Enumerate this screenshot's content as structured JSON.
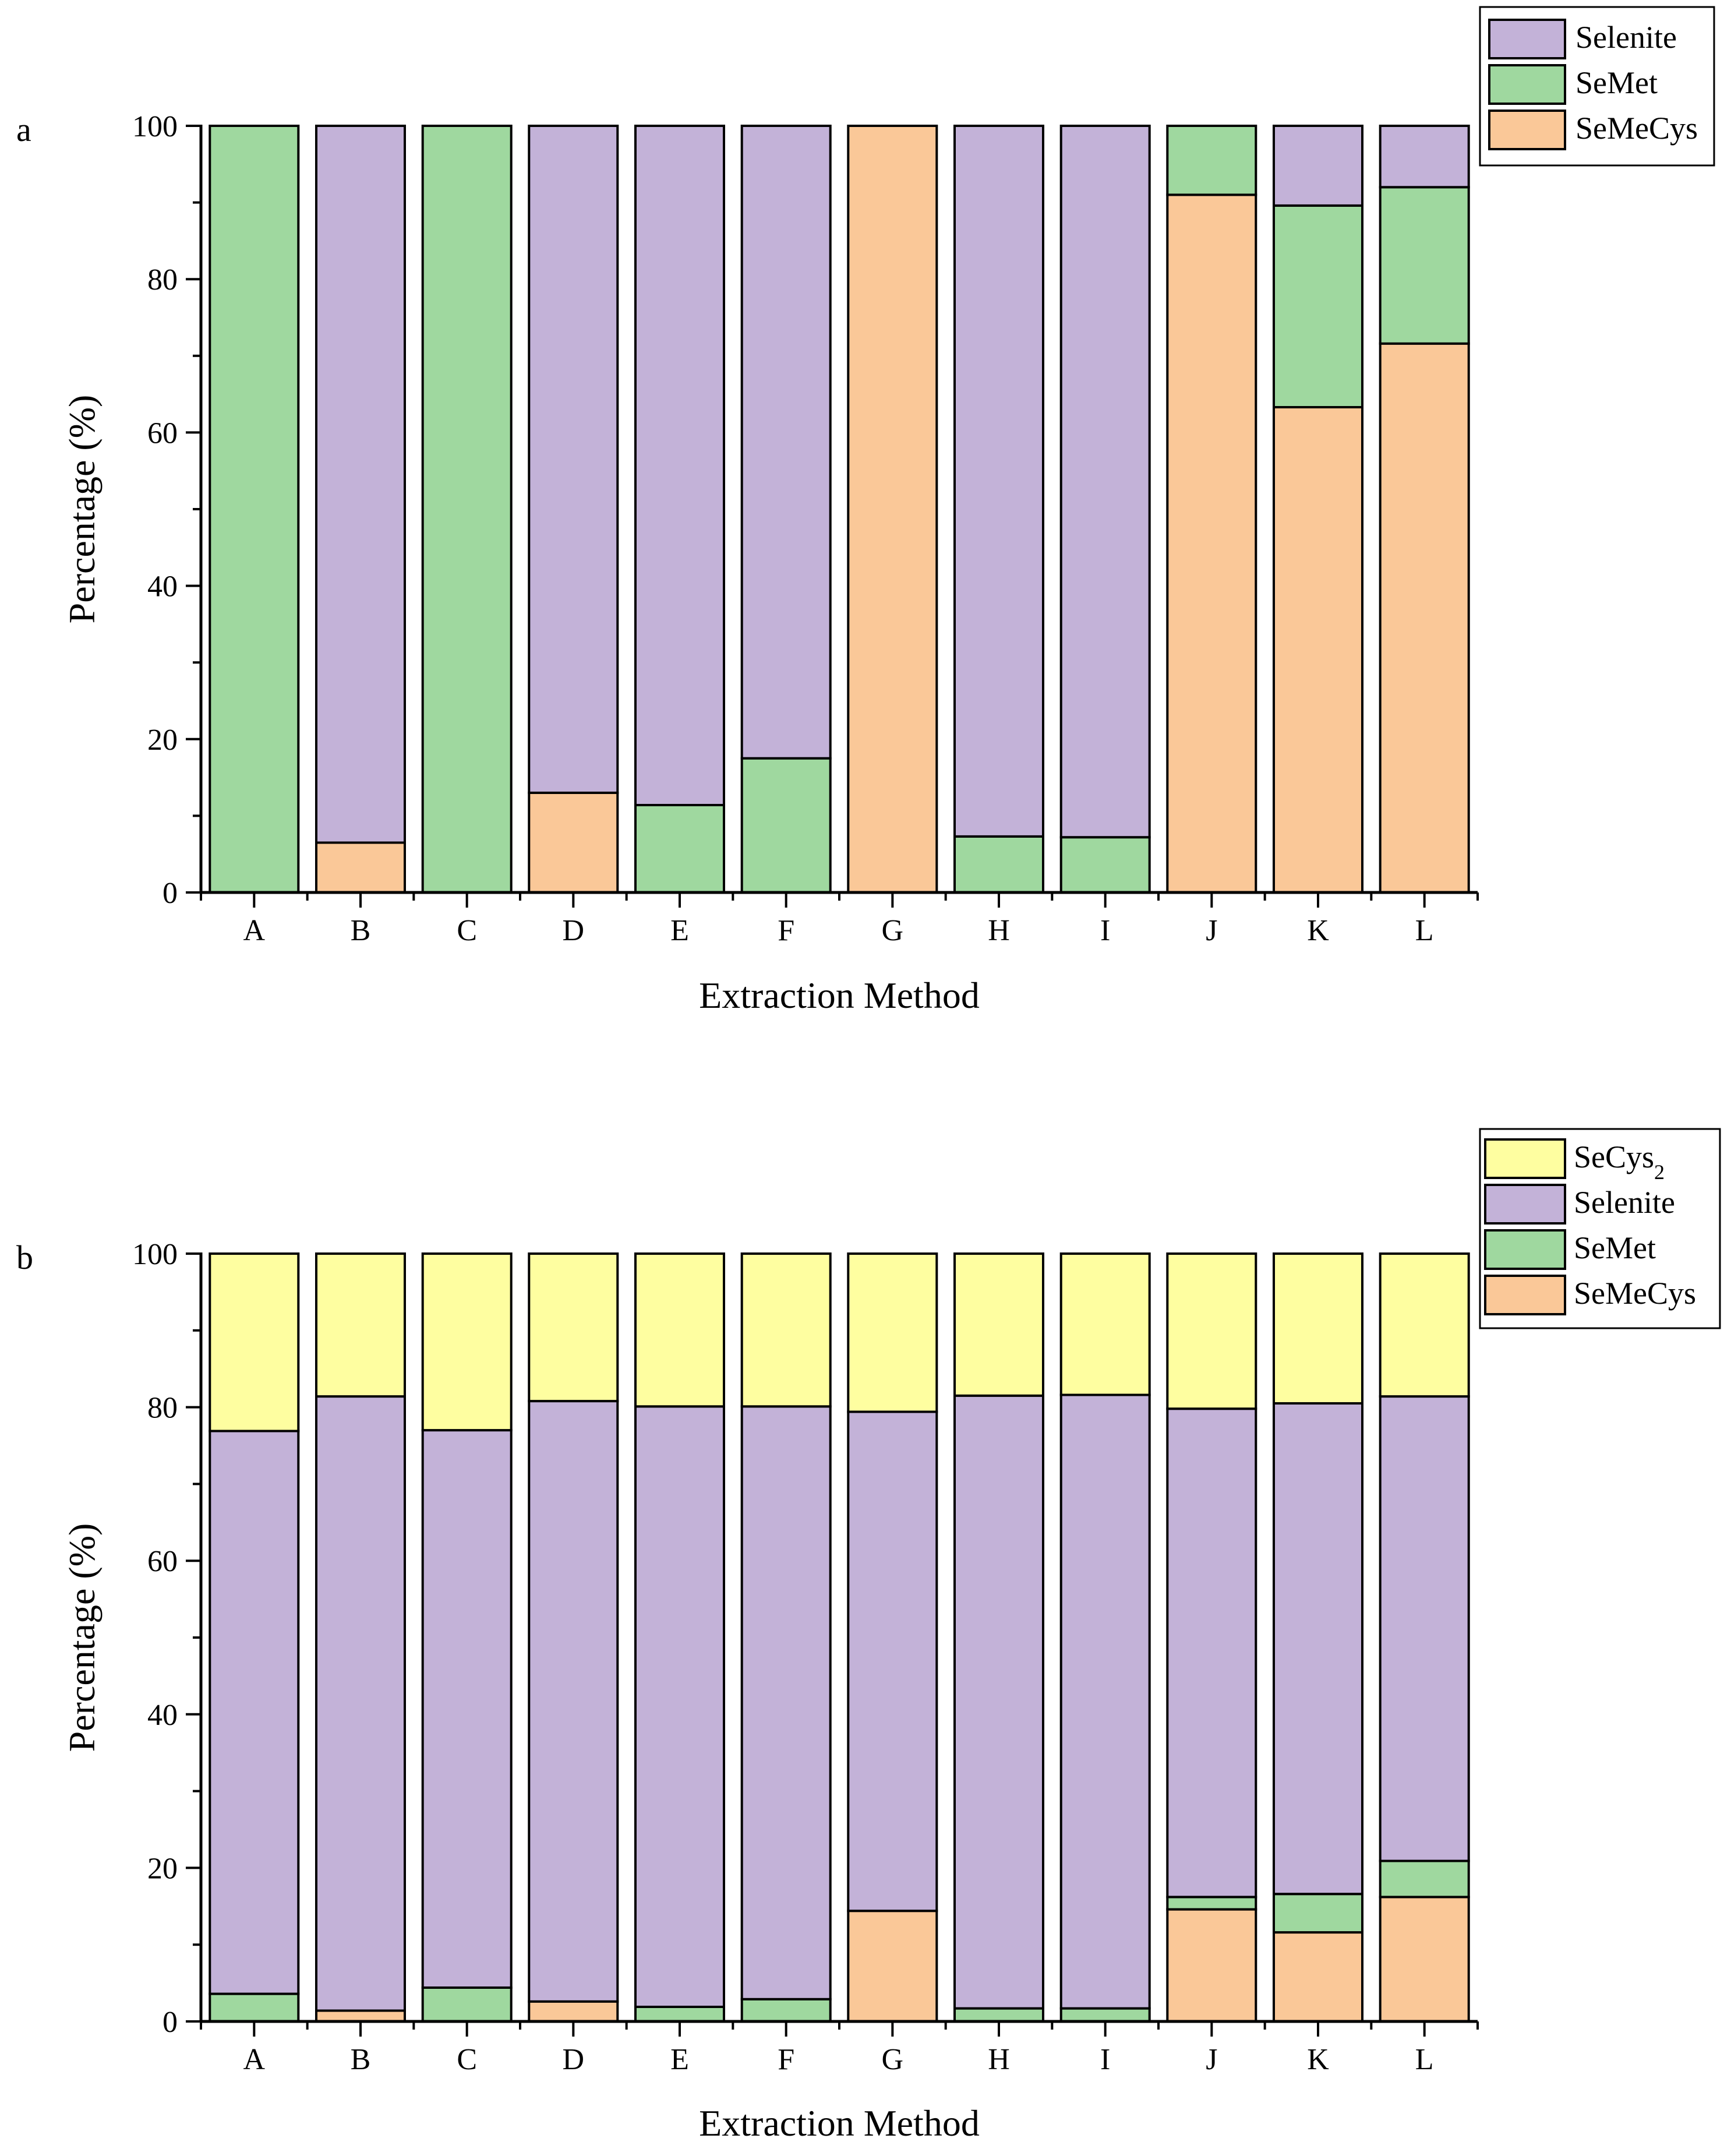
{
  "chart_data": [
    {
      "panel": "a",
      "type": "bar",
      "stacked": true,
      "xlabel": "Extraction Method",
      "ylabel": "Percentage (%)",
      "ylim": [
        0,
        100
      ],
      "yticks": [
        "0",
        "20",
        "40",
        "60",
        "80",
        "100"
      ],
      "categories": [
        "A",
        "B",
        "C",
        "D",
        "E",
        "F",
        "G",
        "H",
        "I",
        "J",
        "K",
        "L"
      ],
      "legend_position": "top-right, outside plot",
      "series": [
        {
          "name": "SeMeCys",
          "color": "#fac898",
          "values": [
            0,
            6.5,
            0,
            13,
            0,
            0,
            100,
            0,
            0,
            91,
            63.3,
            71.6
          ]
        },
        {
          "name": "SeMet",
          "color": "#9fd89f",
          "values": [
            100,
            0,
            100,
            0,
            11.4,
            17.5,
            0,
            7.3,
            7.2,
            9,
            26.3,
            20.4
          ]
        },
        {
          "name": "Selenite",
          "color": "#c3b2d8",
          "values": [
            0,
            93.5,
            0,
            87,
            88.6,
            82.5,
            0,
            92.7,
            92.8,
            0,
            10.4,
            8
          ]
        }
      ],
      "legend": [
        {
          "label": "Selenite",
          "color": "#c3b2d8"
        },
        {
          "label": "SeMet",
          "color": "#9fd89f"
        },
        {
          "label": "SeMeCys",
          "color": "#fac898"
        }
      ]
    },
    {
      "panel": "b",
      "type": "bar",
      "stacked": true,
      "xlabel": "Extraction Method",
      "ylabel": "Percentage (%)",
      "ylim": [
        0,
        100
      ],
      "yticks": [
        "0",
        "20",
        "40",
        "60",
        "80",
        "100"
      ],
      "categories": [
        "A",
        "B",
        "C",
        "D",
        "E",
        "F",
        "G",
        "H",
        "I",
        "J",
        "K",
        "L"
      ],
      "legend_position": "top-right, outside plot",
      "series": [
        {
          "name": "SeMeCys",
          "color": "#fac898",
          "values": [
            0,
            1.4,
            0,
            2.6,
            0,
            0,
            14.4,
            0,
            0,
            14.6,
            11.6,
            16.2
          ]
        },
        {
          "name": "SeMet",
          "color": "#9fd89f",
          "values": [
            3.6,
            0,
            4.4,
            0,
            1.9,
            2.9,
            0,
            1.7,
            1.7,
            1.6,
            5,
            4.7
          ]
        },
        {
          "name": "Selenite",
          "color": "#c3b2d8",
          "values": [
            73.3,
            80,
            72.6,
            78.2,
            78.2,
            77.2,
            65,
            79.8,
            79.9,
            63.6,
            63.9,
            60.5
          ]
        },
        {
          "name": "SeCys2",
          "color": "#fefea0",
          "values": [
            23.1,
            18.6,
            23,
            19.2,
            19.9,
            19.9,
            20.6,
            18.5,
            18.4,
            20.2,
            19.5,
            18.6
          ]
        }
      ],
      "legend": [
        {
          "label": "SeCys",
          "sub": "2",
          "color": "#fefea0"
        },
        {
          "label": "Selenite",
          "color": "#c3b2d8"
        },
        {
          "label": "SeMet",
          "color": "#9fd89f"
        },
        {
          "label": "SeMeCys",
          "color": "#fac898"
        }
      ]
    }
  ]
}
